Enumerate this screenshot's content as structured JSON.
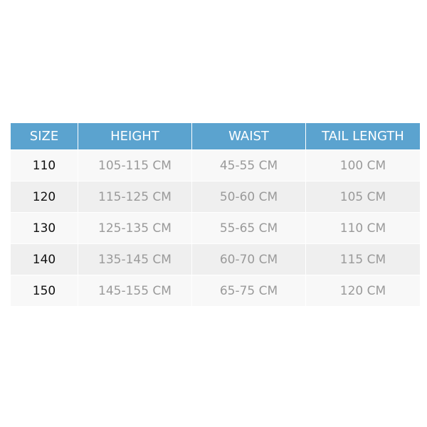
{
  "table": {
    "header_color": "#5ba3cf",
    "headers": [
      "SIZE",
      "HEIGHT",
      "WAIST",
      "TAIL LENGTH"
    ],
    "rows": [
      [
        "110",
        "105-115 CM",
        "45-55 CM",
        "100 CM"
      ],
      [
        "120",
        "115-125 CM",
        "50-60 CM",
        "105 CM"
      ],
      [
        "130",
        "125-135 CM",
        "55-65 CM",
        "110 CM"
      ],
      [
        "140",
        "135-145 CM",
        "60-70 CM",
        "115 CM"
      ],
      [
        "150",
        "145-155 CM",
        "65-75 CM",
        "120 CM"
      ]
    ]
  }
}
